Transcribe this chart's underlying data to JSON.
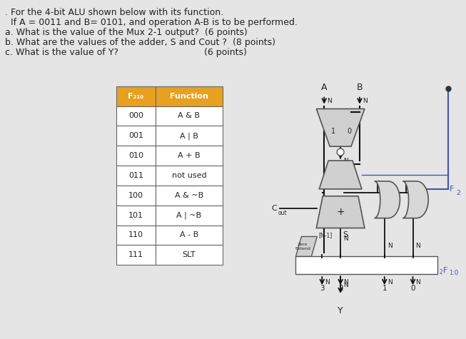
{
  "background_color": "#e5e5e5",
  "title_lines": [
    ". For the 4-bit ALU shown below with its function.",
    "  If A = 0011 and B= 0101, and operation A-B is to be performed.",
    "a. What is the value of the Mux 2-1 output?  (6 points)",
    "b. What are the values of the adder, S and Cout ?  (8 points)",
    "c. What is the value of Y?                              (6 points)"
  ],
  "table_header": [
    "F₂₁₀",
    "Function"
  ],
  "table_rows": [
    [
      "000",
      "A & B"
    ],
    [
      "001",
      "A | B"
    ],
    [
      "010",
      "A + B"
    ],
    [
      "011",
      "not used"
    ],
    [
      "100",
      "A & ~B"
    ],
    [
      "101",
      "A | ~B"
    ],
    [
      "110",
      "A - B"
    ],
    [
      "111",
      "SLT"
    ]
  ],
  "header_color": "#e8a020",
  "header_text_color": "#ffffff",
  "text_color": "#222222",
  "blue_color": "#4455aa",
  "line_color": "#111111"
}
